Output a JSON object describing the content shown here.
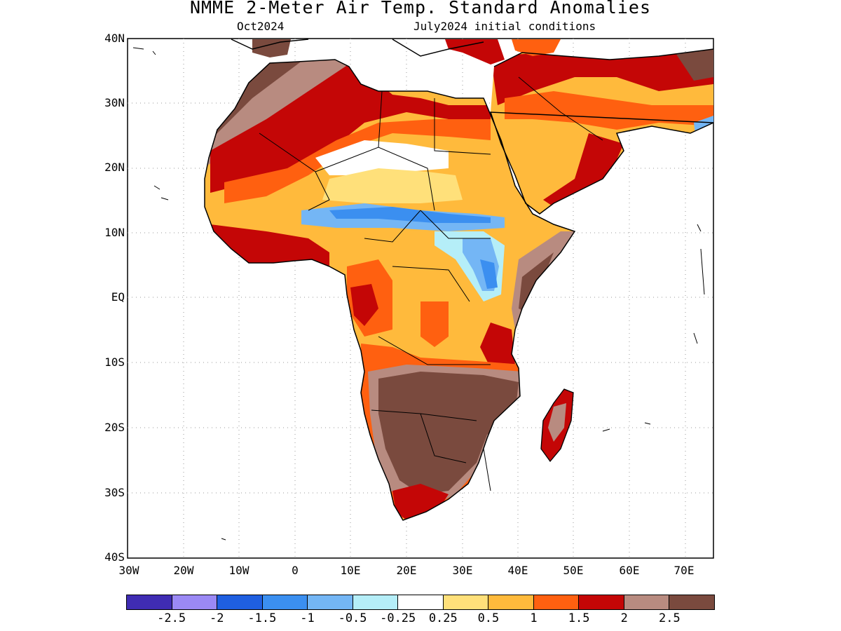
{
  "title": "NMME 2-Meter Air Temp. Standard Anomalies",
  "target_month": "Oct2024",
  "initial_conditions": "July2024 initial conditions",
  "latitude_labels": [
    "40N",
    "30N",
    "20N",
    "10N",
    "EQ",
    "10S",
    "20S",
    "30S",
    "40S"
  ],
  "longitude_labels": [
    "30W",
    "20W",
    "10W",
    "0",
    "10E",
    "20E",
    "30E",
    "40E",
    "50E",
    "60E",
    "70E"
  ],
  "legend": {
    "colors": [
      "#3f2cb3",
      "#9b89f5",
      "#1f5fe0",
      "#3b8ff0",
      "#74b6f5",
      "#b5eef8",
      "#ffffff",
      "#ffe07a",
      "#ffba3c",
      "#ff6010",
      "#c40606",
      "#b88b80",
      "#7a4a3e"
    ],
    "labels": [
      "-2.5",
      "-2",
      "-1.5",
      "-1",
      "-0.5",
      "-0.25",
      "0.25",
      "0.5",
      "1",
      "1.5",
      "2",
      "2.5"
    ]
  },
  "map_extent": {
    "lon": [
      -30,
      75
    ],
    "lat": [
      -40,
      40
    ]
  },
  "anomaly_regions": [
    {
      "area": "southern Africa",
      "level": "above 2.5"
    },
    {
      "area": "northern Sahara and Maghreb",
      "level": "1.5 to 2.5"
    },
    {
      "area": "Sahel belt",
      "level": "-1 to -0.25"
    },
    {
      "area": "Arabian Peninsula",
      "level": "1 to 2"
    },
    {
      "area": "Madagascar",
      "level": "2 to 2.5"
    },
    {
      "area": "Horn of Africa",
      "level": "2 to 2.5"
    }
  ]
}
